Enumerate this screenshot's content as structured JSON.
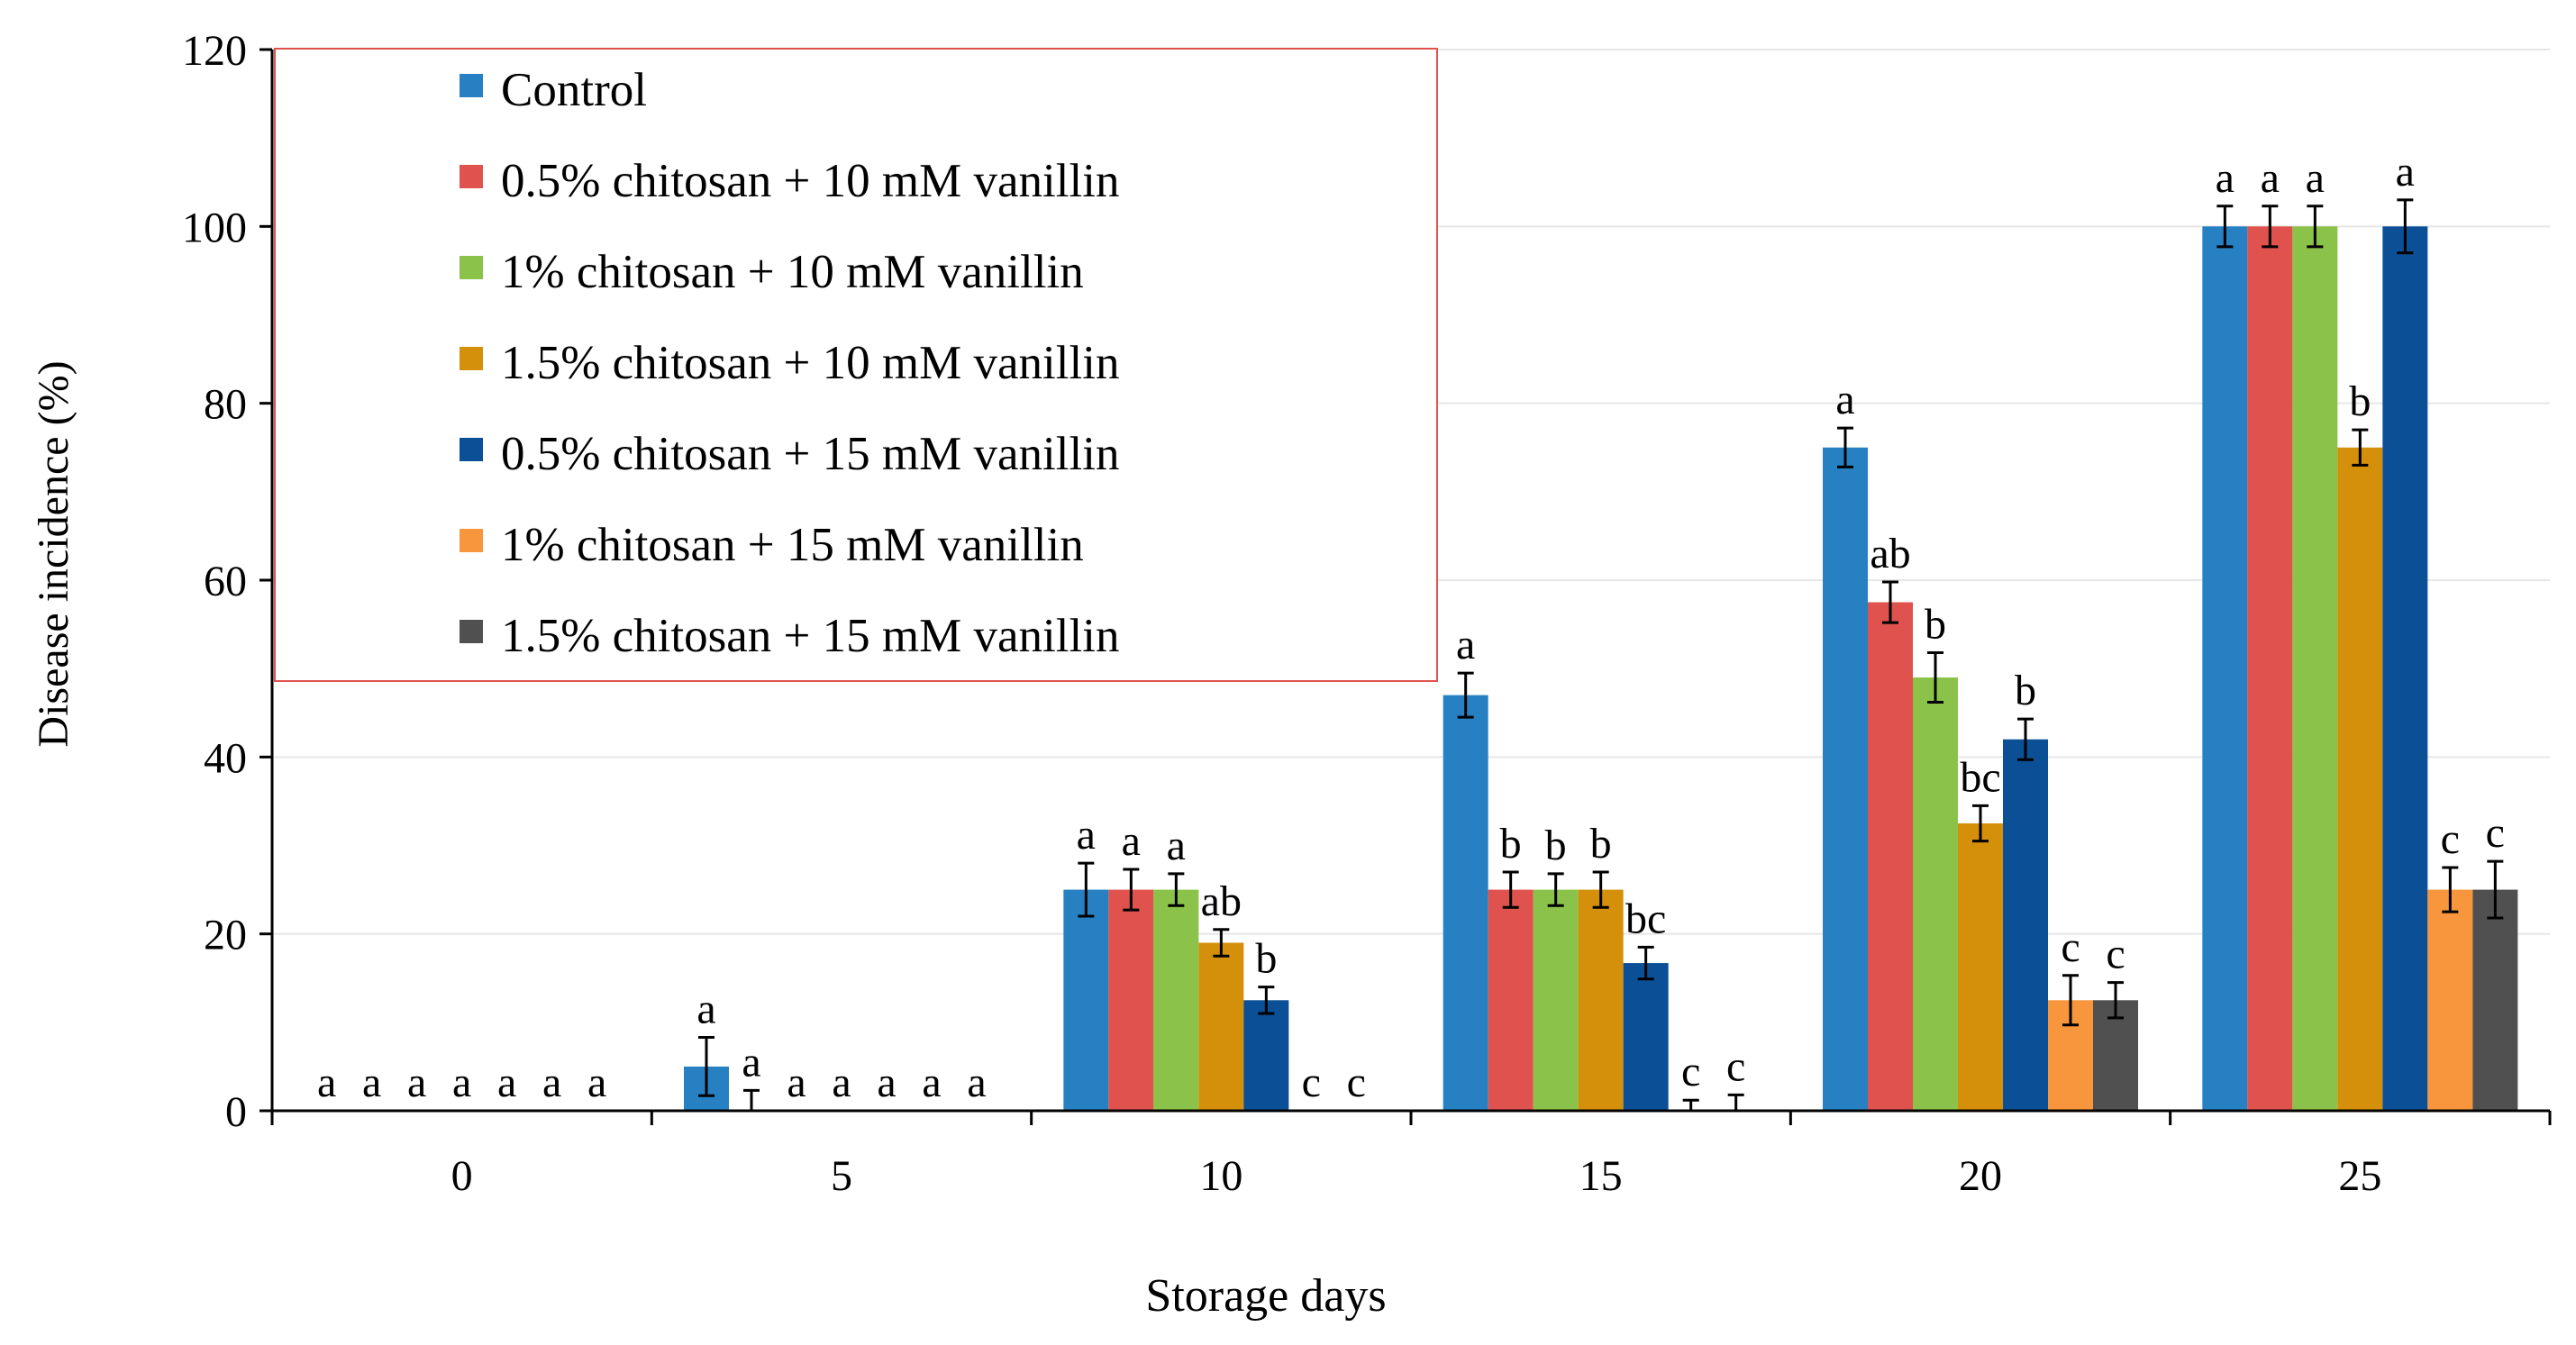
{
  "chart_data": {
    "type": "bar",
    "title": "",
    "xlabel": "Storage days",
    "ylabel": "Disease incidence (%)",
    "ylim": [
      0,
      120
    ],
    "yticks": [
      0,
      20,
      40,
      60,
      80,
      100,
      120
    ],
    "grid": "horizontal, light",
    "legend_position": "top-left, boxed",
    "categories": [
      "0",
      "5",
      "10",
      "15",
      "20",
      "25"
    ],
    "series": [
      {
        "name": "Control",
        "color": "#2680C2",
        "values": [
          0,
          5,
          25,
          47,
          75,
          100
        ],
        "errors": [
          0,
          3.3,
          3,
          2.5,
          2.2,
          2.3
        ],
        "letters": [
          "a",
          "a",
          "a",
          "a",
          "a",
          "a"
        ]
      },
      {
        "name": "0.5% chitosan + 10 mM vanillin",
        "color": "#E0524E",
        "values": [
          0,
          0,
          25,
          25,
          57.5,
          100
        ],
        "errors": [
          0,
          2.3,
          2.3,
          2,
          2.3,
          2.3
        ],
        "letters": [
          "a",
          "a",
          "a",
          "b",
          "ab",
          "a"
        ]
      },
      {
        "name": "1% chitosan + 10 mM vanillin",
        "color": "#8BC34A",
        "values": [
          0,
          0,
          25,
          25,
          49,
          100
        ],
        "errors": [
          0,
          0,
          1.8,
          1.8,
          2.8,
          2.3
        ],
        "letters": [
          "a",
          "a",
          "a",
          "b",
          "b",
          "a"
        ]
      },
      {
        "name": "1.5% chitosan + 10 mM vanillin",
        "color": "#D4900A",
        "values": [
          0,
          0,
          19,
          25,
          32.5,
          75
        ],
        "errors": [
          0,
          0,
          1.5,
          2,
          2,
          2
        ],
        "letters": [
          "a",
          "a",
          "ab",
          "b",
          "bc",
          "b"
        ]
      },
      {
        "name": "0.5% chitosan + 15 mM vanillin",
        "color": "#0B4F96",
        "values": [
          0,
          0,
          12.5,
          16.7,
          42,
          100
        ],
        "errors": [
          0,
          0,
          1.5,
          1.8,
          2.3,
          3
        ],
        "letters": [
          "a",
          "a",
          "b",
          "bc",
          "b",
          "a"
        ]
      },
      {
        "name": "1% chitosan + 15 mM vanillin",
        "color": "#F7963C",
        "values": [
          0,
          0,
          0,
          0,
          12.5,
          25
        ],
        "errors": [
          0,
          0,
          0,
          1.2,
          2.8,
          2.5
        ],
        "letters": [
          "a",
          "a",
          "c",
          "c",
          "c",
          "c"
        ]
      },
      {
        "name": "1.5% chitosan + 15 mM vanillin",
        "color": "#505050",
        "values": [
          0,
          0,
          0,
          0,
          12.5,
          25
        ],
        "errors": [
          0,
          0,
          0,
          1.8,
          2,
          3.2
        ],
        "letters": [
          "a",
          "a",
          "c",
          "c",
          "c",
          "c"
        ]
      }
    ]
  }
}
